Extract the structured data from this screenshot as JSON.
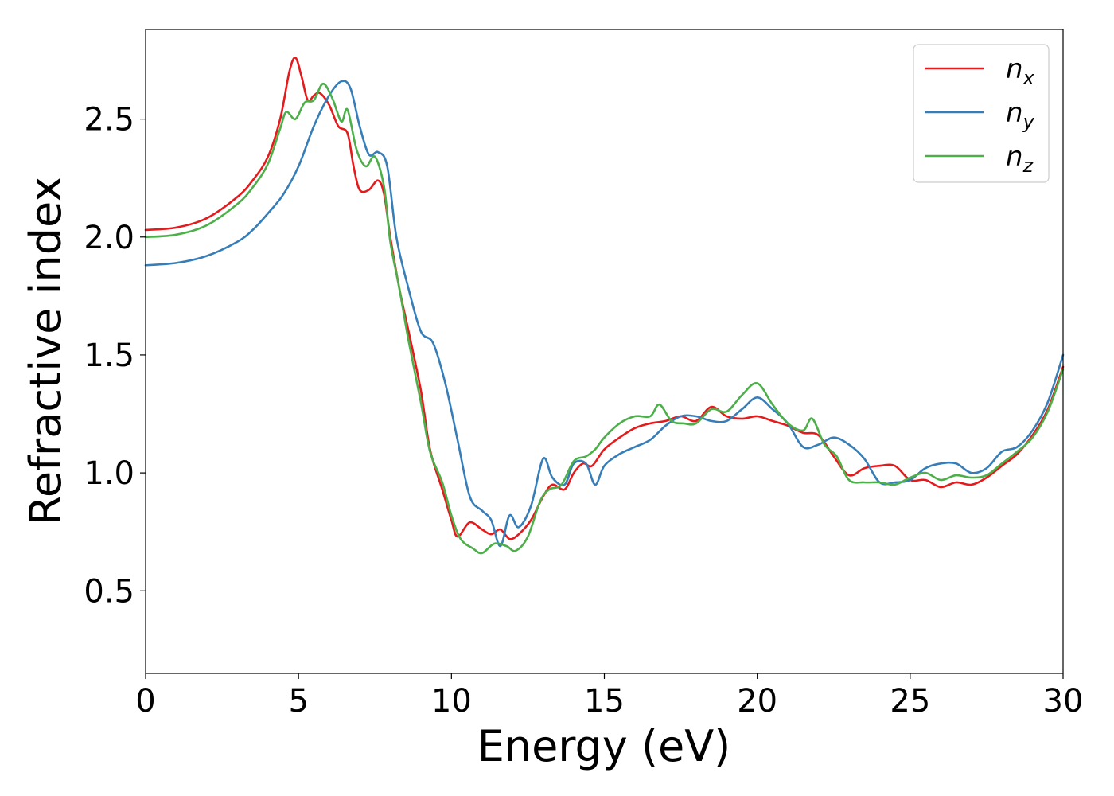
{
  "chart_data": {
    "type": "line",
    "title": "",
    "xlabel": "Energy (eV)",
    "ylabel": "Refractive index",
    "xlim": [
      0,
      30
    ],
    "ylim": [
      0.15,
      2.88
    ],
    "xticks": [
      0,
      5,
      10,
      15,
      20,
      25,
      30
    ],
    "yticks": [
      0.5,
      1.0,
      1.5,
      2.0,
      2.5
    ],
    "xtick_labels": [
      "0",
      "5",
      "10",
      "15",
      "20",
      "25",
      "30"
    ],
    "ytick_labels": [
      "0.5",
      "1.0",
      "1.5",
      "2.0",
      "2.5"
    ],
    "grid": false,
    "legend_position": "top-right",
    "series": [
      {
        "name": "n",
        "subscript": "x",
        "color": "#e41a1c",
        "points": [
          [
            0,
            2.03
          ],
          [
            1,
            2.04
          ],
          [
            2,
            2.08
          ],
          [
            3,
            2.17
          ],
          [
            3.5,
            2.24
          ],
          [
            4,
            2.34
          ],
          [
            4.4,
            2.5
          ],
          [
            4.7,
            2.7
          ],
          [
            4.9,
            2.76
          ],
          [
            5.1,
            2.68
          ],
          [
            5.3,
            2.58
          ],
          [
            5.5,
            2.6
          ],
          [
            5.7,
            2.61
          ],
          [
            6.0,
            2.56
          ],
          [
            6.3,
            2.47
          ],
          [
            6.6,
            2.44
          ],
          [
            6.8,
            2.3
          ],
          [
            7.0,
            2.2
          ],
          [
            7.3,
            2.2
          ],
          [
            7.6,
            2.24
          ],
          [
            7.8,
            2.18
          ],
          [
            8.0,
            2.0
          ],
          [
            8.3,
            1.78
          ],
          [
            8.6,
            1.6
          ],
          [
            9.0,
            1.35
          ],
          [
            9.3,
            1.1
          ],
          [
            9.7,
            0.93
          ],
          [
            10.0,
            0.8
          ],
          [
            10.2,
            0.73
          ],
          [
            10.6,
            0.79
          ],
          [
            11.0,
            0.76
          ],
          [
            11.3,
            0.74
          ],
          [
            11.6,
            0.76
          ],
          [
            11.9,
            0.72
          ],
          [
            12.2,
            0.74
          ],
          [
            12.6,
            0.8
          ],
          [
            13.0,
            0.9
          ],
          [
            13.3,
            0.95
          ],
          [
            13.7,
            0.93
          ],
          [
            14.0,
            1.0
          ],
          [
            14.3,
            1.04
          ],
          [
            14.6,
            1.03
          ],
          [
            15.0,
            1.1
          ],
          [
            15.5,
            1.15
          ],
          [
            16.0,
            1.19
          ],
          [
            16.5,
            1.21
          ],
          [
            17.0,
            1.22
          ],
          [
            17.5,
            1.24
          ],
          [
            18.0,
            1.22
          ],
          [
            18.5,
            1.28
          ],
          [
            19.0,
            1.24
          ],
          [
            19.5,
            1.23
          ],
          [
            20.0,
            1.24
          ],
          [
            20.5,
            1.22
          ],
          [
            21.0,
            1.2
          ],
          [
            21.5,
            1.17
          ],
          [
            22.0,
            1.16
          ],
          [
            22.5,
            1.07
          ],
          [
            23.0,
            0.99
          ],
          [
            23.5,
            1.02
          ],
          [
            24.0,
            1.03
          ],
          [
            24.5,
            1.03
          ],
          [
            25.0,
            0.97
          ],
          [
            25.5,
            0.97
          ],
          [
            26.0,
            0.94
          ],
          [
            26.5,
            0.96
          ],
          [
            27.0,
            0.95
          ],
          [
            27.5,
            0.98
          ],
          [
            28.0,
            1.03
          ],
          [
            28.5,
            1.08
          ],
          [
            29.0,
            1.16
          ],
          [
            29.5,
            1.27
          ],
          [
            30.0,
            1.45
          ]
        ]
      },
      {
        "name": "n",
        "subscript": "y",
        "color": "#377eb8",
        "points": [
          [
            0,
            1.88
          ],
          [
            1,
            1.89
          ],
          [
            2,
            1.92
          ],
          [
            3,
            1.98
          ],
          [
            3.5,
            2.03
          ],
          [
            4,
            2.1
          ],
          [
            4.5,
            2.18
          ],
          [
            5.0,
            2.3
          ],
          [
            5.5,
            2.47
          ],
          [
            6.0,
            2.6
          ],
          [
            6.4,
            2.66
          ],
          [
            6.7,
            2.63
          ],
          [
            7.0,
            2.47
          ],
          [
            7.3,
            2.35
          ],
          [
            7.6,
            2.36
          ],
          [
            7.9,
            2.3
          ],
          [
            8.2,
            2.0
          ],
          [
            8.6,
            1.78
          ],
          [
            9.0,
            1.6
          ],
          [
            9.4,
            1.55
          ],
          [
            9.8,
            1.38
          ],
          [
            10.2,
            1.14
          ],
          [
            10.6,
            0.9
          ],
          [
            11.0,
            0.84
          ],
          [
            11.3,
            0.8
          ],
          [
            11.6,
            0.69
          ],
          [
            11.9,
            0.82
          ],
          [
            12.2,
            0.77
          ],
          [
            12.6,
            0.86
          ],
          [
            13.0,
            1.06
          ],
          [
            13.3,
            0.98
          ],
          [
            13.7,
            0.95
          ],
          [
            14.0,
            1.04
          ],
          [
            14.4,
            1.04
          ],
          [
            14.7,
            0.95
          ],
          [
            15.0,
            1.03
          ],
          [
            15.5,
            1.08
          ],
          [
            16.0,
            1.11
          ],
          [
            16.5,
            1.14
          ],
          [
            17.0,
            1.2
          ],
          [
            17.5,
            1.24
          ],
          [
            18.0,
            1.24
          ],
          [
            18.5,
            1.22
          ],
          [
            19.0,
            1.22
          ],
          [
            19.5,
            1.27
          ],
          [
            20.0,
            1.32
          ],
          [
            20.5,
            1.27
          ],
          [
            21.0,
            1.21
          ],
          [
            21.5,
            1.11
          ],
          [
            22.0,
            1.12
          ],
          [
            22.5,
            1.15
          ],
          [
            23.0,
            1.12
          ],
          [
            23.5,
            1.06
          ],
          [
            24.0,
            0.96
          ],
          [
            24.5,
            0.96
          ],
          [
            25.0,
            0.97
          ],
          [
            25.5,
            1.02
          ],
          [
            26.0,
            1.04
          ],
          [
            26.5,
            1.04
          ],
          [
            27.0,
            1.0
          ],
          [
            27.5,
            1.02
          ],
          [
            28.0,
            1.09
          ],
          [
            28.5,
            1.11
          ],
          [
            29.0,
            1.18
          ],
          [
            29.5,
            1.3
          ],
          [
            30.0,
            1.5
          ]
        ]
      },
      {
        "name": "n",
        "subscript": "z",
        "color": "#4daf4a",
        "points": [
          [
            0,
            2.0
          ],
          [
            1,
            2.01
          ],
          [
            2,
            2.05
          ],
          [
            3,
            2.14
          ],
          [
            3.5,
            2.21
          ],
          [
            4,
            2.31
          ],
          [
            4.4,
            2.46
          ],
          [
            4.6,
            2.53
          ],
          [
            4.9,
            2.5
          ],
          [
            5.2,
            2.57
          ],
          [
            5.5,
            2.58
          ],
          [
            5.8,
            2.65
          ],
          [
            6.1,
            2.59
          ],
          [
            6.4,
            2.49
          ],
          [
            6.6,
            2.54
          ],
          [
            6.9,
            2.37
          ],
          [
            7.2,
            2.3
          ],
          [
            7.5,
            2.34
          ],
          [
            7.8,
            2.21
          ],
          [
            8.0,
            1.98
          ],
          [
            8.3,
            1.78
          ],
          [
            8.6,
            1.56
          ],
          [
            9.0,
            1.3
          ],
          [
            9.3,
            1.09
          ],
          [
            9.7,
            0.96
          ],
          [
            10.0,
            0.82
          ],
          [
            10.3,
            0.72
          ],
          [
            10.7,
            0.68
          ],
          [
            11.0,
            0.66
          ],
          [
            11.4,
            0.7
          ],
          [
            11.8,
            0.69
          ],
          [
            12.1,
            0.67
          ],
          [
            12.5,
            0.73
          ],
          [
            12.9,
            0.88
          ],
          [
            13.2,
            0.93
          ],
          [
            13.6,
            0.95
          ],
          [
            14.0,
            1.05
          ],
          [
            14.4,
            1.07
          ],
          [
            14.7,
            1.1
          ],
          [
            15.0,
            1.15
          ],
          [
            15.5,
            1.21
          ],
          [
            16.0,
            1.24
          ],
          [
            16.5,
            1.24
          ],
          [
            16.8,
            1.29
          ],
          [
            17.2,
            1.22
          ],
          [
            17.6,
            1.21
          ],
          [
            18.0,
            1.21
          ],
          [
            18.5,
            1.27
          ],
          [
            19.0,
            1.26
          ],
          [
            19.5,
            1.33
          ],
          [
            20.0,
            1.38
          ],
          [
            20.5,
            1.29
          ],
          [
            21.0,
            1.21
          ],
          [
            21.5,
            1.18
          ],
          [
            21.8,
            1.23
          ],
          [
            22.2,
            1.12
          ],
          [
            22.6,
            1.07
          ],
          [
            23.0,
            0.97
          ],
          [
            23.5,
            0.96
          ],
          [
            24.0,
            0.96
          ],
          [
            24.5,
            0.95
          ],
          [
            25.0,
            0.98
          ],
          [
            25.5,
            1.0
          ],
          [
            26.0,
            0.97
          ],
          [
            26.5,
            0.99
          ],
          [
            27.0,
            0.98
          ],
          [
            27.5,
            0.99
          ],
          [
            28.0,
            1.04
          ],
          [
            28.5,
            1.09
          ],
          [
            29.0,
            1.15
          ],
          [
            29.5,
            1.26
          ],
          [
            30.0,
            1.44
          ]
        ]
      }
    ]
  }
}
